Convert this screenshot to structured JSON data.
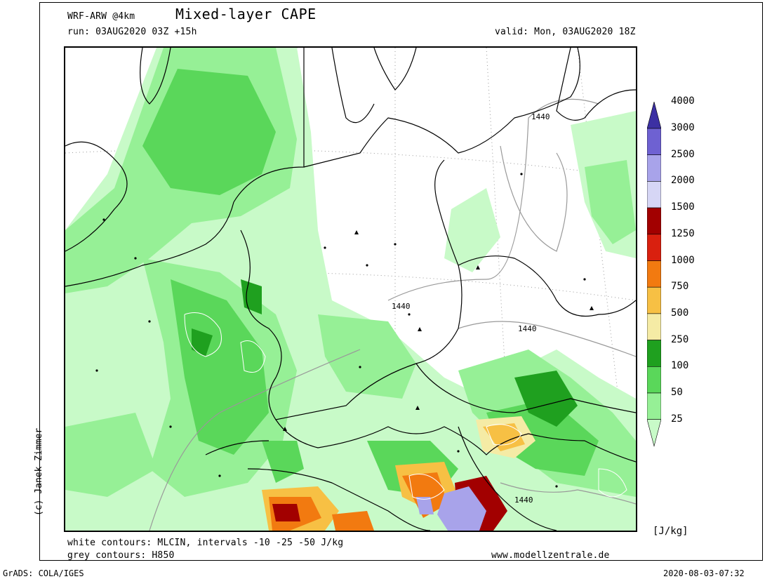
{
  "header": {
    "model": "WRF-ARW @4km",
    "title": "Mixed-layer CAPE",
    "run": "run: 03AUG2020 03Z +15h",
    "valid": "valid: Mon, 03AUG2020 18Z"
  },
  "credit": "(c) Janek Zimmer",
  "notes": {
    "white_contours": "white contours: MLCIN, intervals -10 -25 -50 J/kg",
    "grey_contours": "grey contours: H850",
    "website": "www.modellzentrale.de"
  },
  "contour_labels": [
    "1440",
    "1440",
    "1440",
    "1440"
  ],
  "legend": {
    "units": "[J/kg]",
    "levels": [
      "25",
      "50",
      "100",
      "250",
      "500",
      "750",
      "1000",
      "1250",
      "1500",
      "2000",
      "2500",
      "3000",
      "4000"
    ],
    "colors": [
      "#c8fac8",
      "#96f096",
      "#5ad75a",
      "#1fa01f",
      "#f5eba5",
      "#f7c044",
      "#f27a10",
      "#d9200f",
      "#a20000",
      "#d6d6f5",
      "#a8a3ea",
      "#6e61d2",
      "#3c30a3"
    ]
  },
  "footer": {
    "left": "GrADS: COLA/IGES",
    "right": "2020-08-03-07:32"
  }
}
